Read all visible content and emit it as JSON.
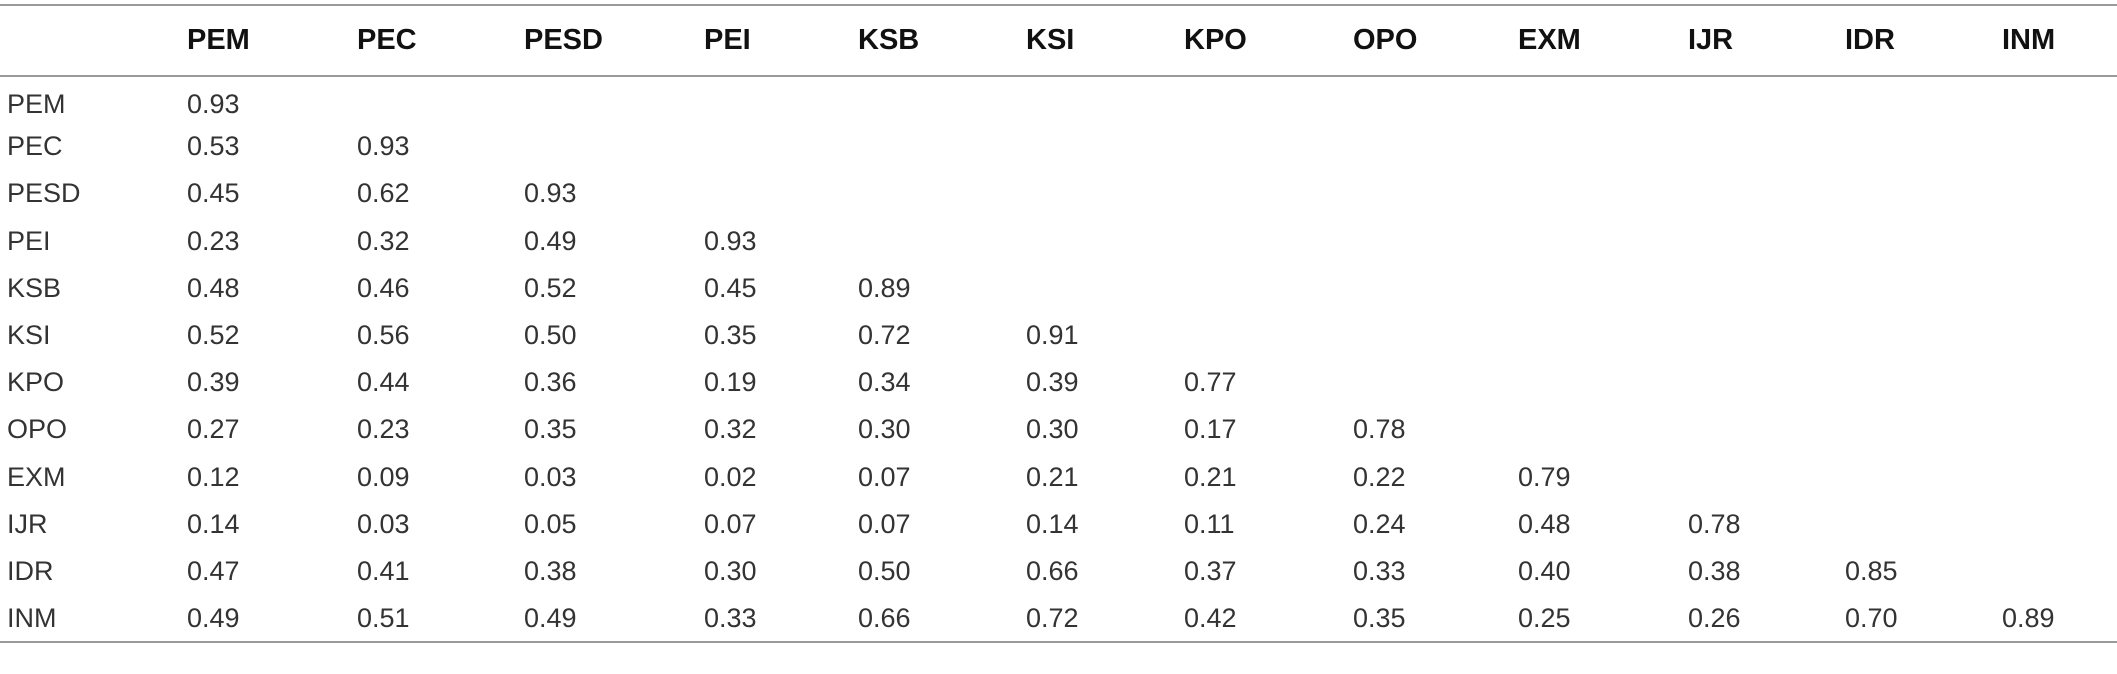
{
  "table": {
    "columns": [
      "",
      "PEM",
      "PEC",
      "PESD",
      "PEI",
      "KSB",
      "KSI",
      "KPO",
      "OPO",
      "EXM",
      "IJR",
      "IDR",
      "INM"
    ],
    "rows": [
      {
        "label": "PEM",
        "values": [
          "0.93",
          "",
          "",
          "",
          "",
          "",
          "",
          "",
          "",
          "",
          "",
          ""
        ]
      },
      {
        "label": "PEC",
        "values": [
          "0.53",
          "0.93",
          "",
          "",
          "",
          "",
          "",
          "",
          "",
          "",
          "",
          ""
        ]
      },
      {
        "label": "PESD",
        "values": [
          "0.45",
          "0.62",
          "0.93",
          "",
          "",
          "",
          "",
          "",
          "",
          "",
          "",
          ""
        ]
      },
      {
        "label": "PEI",
        "values": [
          "0.23",
          "0.32",
          "0.49",
          "0.93",
          "",
          "",
          "",
          "",
          "",
          "",
          "",
          ""
        ]
      },
      {
        "label": "KSB",
        "values": [
          "0.48",
          "0.46",
          "0.52",
          "0.45",
          "0.89",
          "",
          "",
          "",
          "",
          "",
          "",
          ""
        ]
      },
      {
        "label": "KSI",
        "values": [
          "0.52",
          "0.56",
          "0.50",
          "0.35",
          "0.72",
          "0.91",
          "",
          "",
          "",
          "",
          "",
          ""
        ]
      },
      {
        "label": "KPO",
        "values": [
          "0.39",
          "0.44",
          "0.36",
          "0.19",
          "0.34",
          "0.39",
          "0.77",
          "",
          "",
          "",
          "",
          ""
        ]
      },
      {
        "label": "OPO",
        "values": [
          "0.27",
          "0.23",
          "0.35",
          "0.32",
          "0.30",
          "0.30",
          "0.17",
          "0.78",
          "",
          "",
          "",
          ""
        ]
      },
      {
        "label": "EXM",
        "values": [
          "0.12",
          "0.09",
          "0.03",
          "0.02",
          "0.07",
          "0.21",
          "0.21",
          "0.22",
          "0.79",
          "",
          "",
          ""
        ]
      },
      {
        "label": "IJR",
        "values": [
          "0.14",
          "0.03",
          "0.05",
          "0.07",
          "0.07",
          "0.14",
          "0.11",
          "0.24",
          "0.48",
          "0.78",
          "",
          ""
        ]
      },
      {
        "label": "IDR",
        "values": [
          "0.47",
          "0.41",
          "0.38",
          "0.30",
          "0.50",
          "0.66",
          "0.37",
          "0.33",
          "0.40",
          "0.38",
          "0.85",
          ""
        ]
      },
      {
        "label": "INM",
        "values": [
          "0.49",
          "0.51",
          "0.49",
          "0.33",
          "0.66",
          "0.72",
          "0.42",
          "0.35",
          "0.25",
          "0.26",
          "0.70",
          "0.89"
        ]
      }
    ]
  }
}
